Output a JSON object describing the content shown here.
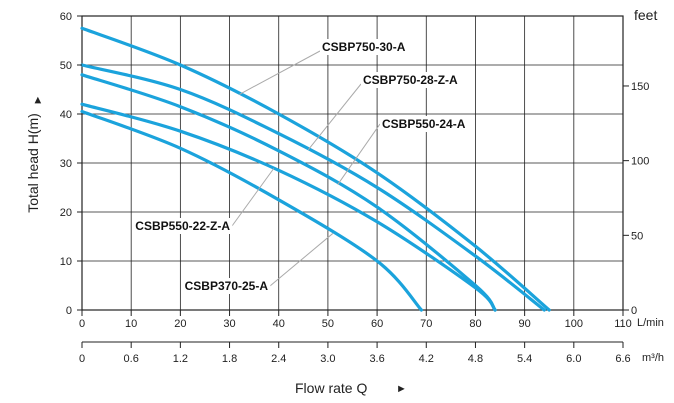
{
  "chart_data": {
    "type": "line",
    "title": "",
    "xlabel": "Flow rate  Q",
    "xlabel_arrow": "►",
    "ylabel": "Total  head H(m)",
    "ylabel_arrow": "►",
    "right_axis_label": "feet",
    "x_unit_lmin": "L/min",
    "x_unit_m3h": "m³/h",
    "xlim": [
      0,
      110
    ],
    "ylim": [
      0,
      60
    ],
    "grid": true,
    "x_ticks": [
      0,
      10,
      20,
      30,
      40,
      50,
      60,
      70,
      80,
      90,
      100,
      110
    ],
    "y_ticks": [
      0,
      10,
      20,
      30,
      40,
      50,
      60
    ],
    "y_right_ticks": [
      0,
      50,
      100,
      150
    ],
    "m3h_ticks": [
      "0",
      "0.6",
      "1.2",
      "1.8",
      "2.4",
      "3.0",
      "3.6",
      "4.2",
      "4.8",
      "5.4",
      "6.0",
      "6.6"
    ],
    "series": [
      {
        "name": "CSBP750-30-A",
        "x": [
          0,
          20,
          40,
          60,
          80,
          95
        ],
        "y": [
          57.5,
          50,
          40,
          28,
          13,
          0
        ]
      },
      {
        "name": "CSBP750-28-Z-A",
        "x": [
          0,
          20,
          40,
          60,
          80,
          94
        ],
        "y": [
          50,
          45,
          36,
          25,
          11,
          0
        ]
      },
      {
        "name": "CSBP550-24-A",
        "x": [
          0,
          20,
          40,
          60,
          80,
          84
        ],
        "y": [
          48,
          41.5,
          32.5,
          21,
          5,
          0
        ]
      },
      {
        "name": "CSBP550-22-Z-A",
        "x": [
          0,
          20,
          40,
          60,
          80,
          84
        ],
        "y": [
          42,
          36.5,
          28.5,
          18,
          4.5,
          0
        ]
      },
      {
        "name": "CSBP370-25-A",
        "x": [
          0,
          20,
          40,
          60,
          69
        ],
        "y": [
          40.5,
          33,
          22.5,
          10,
          0
        ]
      }
    ],
    "series_color": "#1ba3dc"
  }
}
